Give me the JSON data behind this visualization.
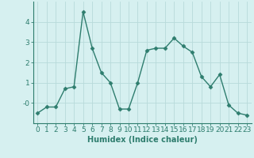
{
  "x": [
    0,
    1,
    2,
    3,
    4,
    5,
    6,
    7,
    8,
    9,
    10,
    11,
    12,
    13,
    14,
    15,
    16,
    17,
    18,
    19,
    20,
    21,
    22,
    23
  ],
  "y": [
    -0.5,
    -0.2,
    -0.2,
    0.7,
    0.8,
    4.5,
    2.7,
    1.5,
    1.0,
    -0.3,
    -0.3,
    1.0,
    2.6,
    2.7,
    2.7,
    3.2,
    2.8,
    2.5,
    1.3,
    0.8,
    1.4,
    -0.1,
    -0.5,
    -0.6
  ],
  "line_color": "#2e7d6e",
  "marker": "D",
  "marker_size": 2.5,
  "bg_color": "#d6f0f0",
  "grid_color": "#b8dada",
  "xlabel": "Humidex (Indice chaleur)",
  "ylim": [
    -1,
    5
  ],
  "xlim": [
    -0.5,
    23.5
  ],
  "yticks": [
    0,
    1,
    2,
    3,
    4
  ],
  "ytick_labels": [
    "-0",
    "1",
    "2",
    "3",
    "4"
  ],
  "xtick_labels": [
    "0",
    "1",
    "2",
    "3",
    "4",
    "5",
    "6",
    "7",
    "8",
    "9",
    "10",
    "11",
    "12",
    "13",
    "14",
    "15",
    "16",
    "17",
    "18",
    "19",
    "20",
    "21",
    "22",
    "23"
  ],
  "xlabel_fontsize": 7,
  "tick_fontsize": 6.5,
  "line_width": 1.0
}
